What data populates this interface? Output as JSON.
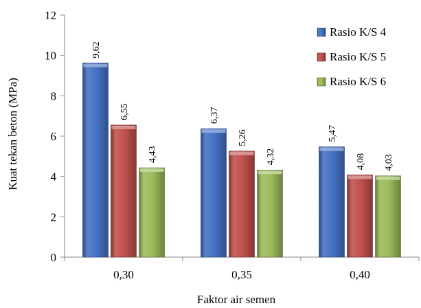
{
  "chart_data": {
    "type": "bar",
    "xlabel": "Faktor air semen",
    "ylabel": "Kuat tekan beton (MPa)",
    "categories": [
      "0,30",
      "0,35",
      "0,40"
    ],
    "ylim": [
      0,
      12
    ],
    "yticks": [
      "0",
      "2",
      "4",
      "6",
      "8",
      "10",
      "12"
    ],
    "grid": false,
    "legend_position": "top-right",
    "series": [
      {
        "name": "Rasio K/S 4",
        "color": "#4472c4",
        "values": [
          9.62,
          6.37,
          5.47
        ],
        "labels": [
          "9,62",
          "6,37",
          "5,47"
        ]
      },
      {
        "name": "Rasio K/S 5",
        "color": "#c0504d",
        "values": [
          6.55,
          5.26,
          4.08
        ],
        "labels": [
          "6,55",
          "5,26",
          "4,08"
        ]
      },
      {
        "name": "Rasio K/S 6",
        "color": "#9bbb59",
        "values": [
          4.43,
          4.32,
          4.03
        ],
        "labels": [
          "4,43",
          "4,32",
          "4,03"
        ]
      }
    ]
  }
}
